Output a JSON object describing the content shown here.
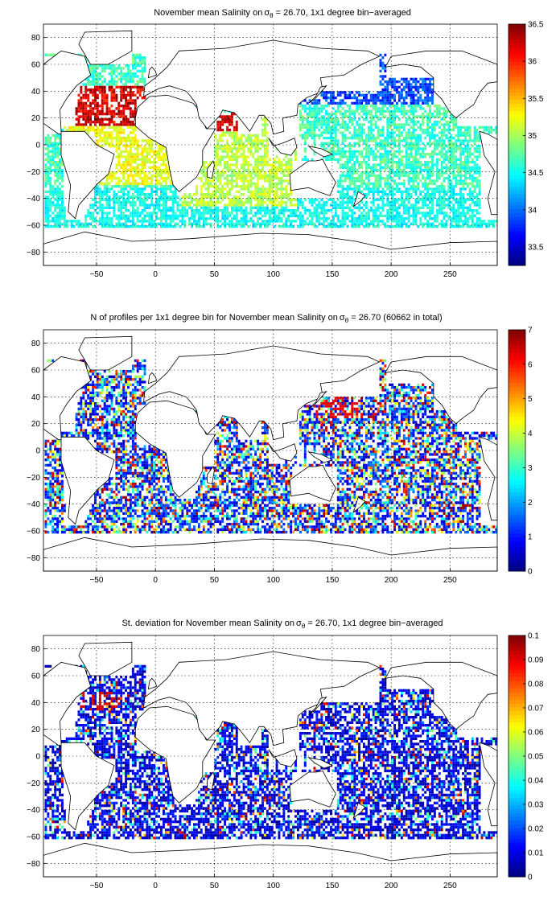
{
  "chart_data": [
    {
      "type": "heatmap",
      "title": "November mean Salinity on",
      "title_sigma": "σ",
      "title_sub": "θ",
      "title_rest": " = 26.70, 1x1 degree bin−averaged",
      "x": {
        "min": -95,
        "max": 290,
        "ticks": [
          -50,
          0,
          50,
          100,
          150,
          200,
          250
        ],
        "tick_labels": [
          "−50",
          "0",
          "50",
          "100",
          "150",
          "200",
          "250"
        ]
      },
      "y": {
        "min": -90,
        "max": 90,
        "ticks": [
          80,
          60,
          40,
          20,
          0,
          -20,
          -40,
          -60,
          -80
        ],
        "tick_labels": [
          "80",
          "60",
          "40",
          "20",
          "0",
          "−20",
          "−40",
          "−60",
          "−80"
        ]
      },
      "grid": true,
      "colormap": "jet",
      "colorbar": {
        "min": 33.25,
        "max": 36.5,
        "ticks": [
          33.5,
          34,
          34.5,
          35,
          35.5,
          36,
          36.5
        ],
        "tick_labels": [
          "33.5",
          "34",
          "34.5",
          "35",
          "35.5",
          "36",
          "36.5"
        ]
      },
      "field_kind": "salinity",
      "fill_fraction": 0.72
    },
    {
      "type": "heatmap",
      "title": "N of profiles per 1x1 degree bin for November mean Salinity on",
      "title_sigma": "σ",
      "title_sub": "θ",
      "title_rest": " = 26.70 (60662 in total)",
      "x": {
        "min": -95,
        "max": 290,
        "ticks": [
          -50,
          0,
          50,
          100,
          150,
          200,
          250
        ],
        "tick_labels": [
          "−50",
          "0",
          "50",
          "100",
          "150",
          "200",
          "250"
        ]
      },
      "y": {
        "min": -90,
        "max": 90,
        "ticks": [
          80,
          60,
          40,
          20,
          0,
          -20,
          -40,
          -60,
          -80
        ],
        "tick_labels": [
          "80",
          "60",
          "40",
          "20",
          "0",
          "−20",
          "−40",
          "−60",
          "−80"
        ]
      },
      "grid": true,
      "colormap": "jet",
      "colorbar": {
        "min": 0,
        "max": 7,
        "ticks": [
          0,
          1,
          2,
          3,
          4,
          5,
          6,
          7
        ],
        "tick_labels": [
          "0",
          "1",
          "2",
          "3",
          "4",
          "5",
          "6",
          "7"
        ]
      },
      "field_kind": "count",
      "total_profiles": 60662,
      "fill_fraction": 0.68
    },
    {
      "type": "heatmap",
      "title": "St. deviation for November mean Salinity on",
      "title_sigma": "σ",
      "title_sub": "θ",
      "title_rest": " = 26.70, 1x1 degree bin−averaged",
      "x": {
        "min": -95,
        "max": 290,
        "ticks": [
          -50,
          0,
          50,
          100,
          150,
          200,
          250
        ],
        "tick_labels": [
          "−50",
          "0",
          "50",
          "100",
          "150",
          "200",
          "250"
        ]
      },
      "y": {
        "min": -90,
        "max": 90,
        "ticks": [
          80,
          60,
          40,
          20,
          0,
          -20,
          -40,
          -60,
          -80
        ],
        "tick_labels": [
          "80",
          "60",
          "40",
          "20",
          "0",
          "−20",
          "−40",
          "−60",
          "−80"
        ]
      },
      "grid": true,
      "colormap": "jet",
      "colorbar": {
        "min": 0,
        "max": 0.1,
        "ticks": [
          0,
          0.01,
          0.02,
          0.03,
          0.04,
          0.05,
          0.06,
          0.07,
          0.08,
          0.09,
          0.1
        ],
        "tick_labels": [
          "0",
          "0.01",
          "0.02",
          "0.03",
          "0.04",
          "0.05",
          "0.06",
          "0.07",
          "0.08",
          "0.09",
          "0.1"
        ]
      },
      "field_kind": "stdev",
      "fill_fraction": 0.68
    }
  ]
}
